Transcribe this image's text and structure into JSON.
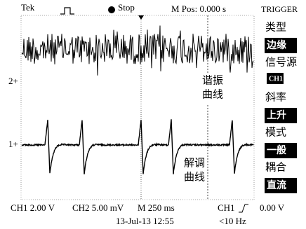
{
  "header": {
    "brand": "Tek",
    "status": "Stop",
    "position": "M Pos: 0.000 s"
  },
  "menu": {
    "title": "TRIGGER",
    "items": [
      {
        "label": "类型",
        "value": "边缘"
      },
      {
        "label": "信号源",
        "value": "CH1"
      },
      {
        "label": "斜率",
        "value": "上升"
      },
      {
        "label": "模式",
        "value": "一般"
      },
      {
        "label": "耦合",
        "value": "直流"
      }
    ]
  },
  "markers": {
    "ch2": "2+",
    "ch1": "1+"
  },
  "annotations": [
    {
      "lines": [
        "谐振",
        "曲线"
      ]
    },
    {
      "lines": [
        "解调",
        "曲线"
      ]
    }
  ],
  "footer": {
    "ch1_scale": "CH1 2.00 V",
    "ch2_scale": "CH2 5.00 mV",
    "timebase": "M 250 ms",
    "trigger_source": "CH1",
    "trigger_level": "0.00 V",
    "datetime": "13-Jul-13 12:55",
    "frequency": "<10 Hz"
  }
}
